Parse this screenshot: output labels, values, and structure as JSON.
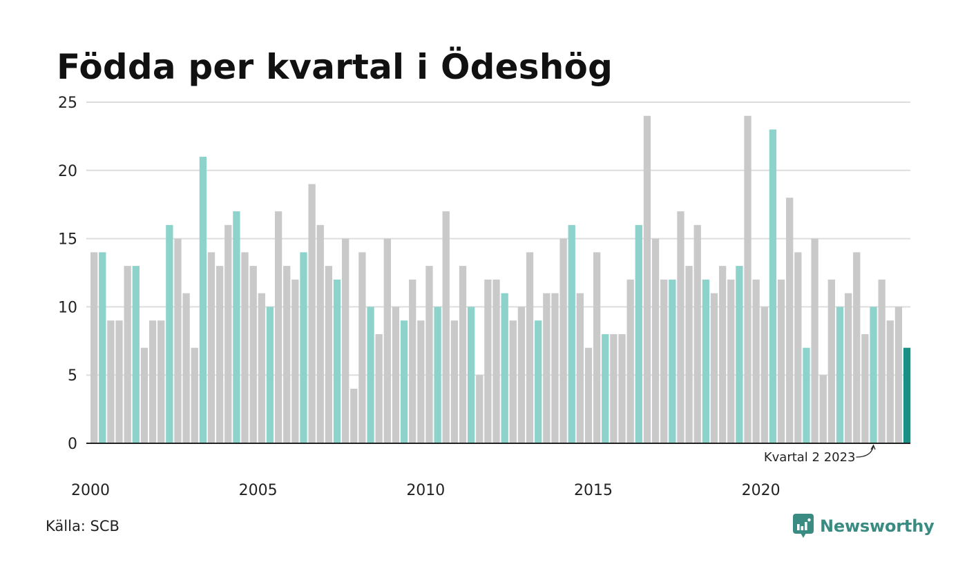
{
  "title": "Födda per kvartal i Ödeshög",
  "source": "Källa: SCB",
  "brand": {
    "name": "Newsworthy",
    "icon": "newsworthy-logo-icon",
    "color": "#3a8c82"
  },
  "colors": {
    "q1": "#8dd3cb",
    "other": "#c9c9c9",
    "latest": "#1a8f84",
    "grid": "#dddddd",
    "axis": "#222222"
  },
  "chart_data": {
    "type": "bar",
    "title": "Födda per kvartal i Ödeshög",
    "ylim": [
      0,
      25
    ],
    "yticks": [
      0,
      5,
      10,
      15,
      20,
      25
    ],
    "xtick_labels": [
      "2000",
      "2005",
      "2010",
      "2015",
      "2020"
    ],
    "grid": true,
    "start_year": 2000,
    "annotation": {
      "text": "Kvartal 2 2023",
      "year": 2023,
      "quarter": 2
    },
    "values": [
      14,
      14,
      9,
      9,
      13,
      13,
      7,
      9,
      9,
      16,
      15,
      11,
      7,
      21,
      14,
      13,
      16,
      17,
      14,
      13,
      11,
      10,
      17,
      13,
      12,
      14,
      19,
      16,
      13,
      12,
      15,
      4,
      14,
      10,
      8,
      15,
      10,
      9,
      12,
      9,
      13,
      10,
      17,
      9,
      13,
      10,
      5,
      12,
      12,
      11,
      9,
      10,
      14,
      9,
      11,
      11,
      15,
      16,
      11,
      7,
      14,
      8,
      8,
      8,
      12,
      16,
      24,
      15,
      12,
      12,
      17,
      13,
      16,
      12,
      11,
      13,
      12,
      13,
      24,
      12,
      10,
      23,
      12,
      18,
      14,
      7,
      15,
      5,
      12,
      10,
      11,
      14,
      8,
      10,
      12,
      9,
      10,
      7
    ]
  }
}
